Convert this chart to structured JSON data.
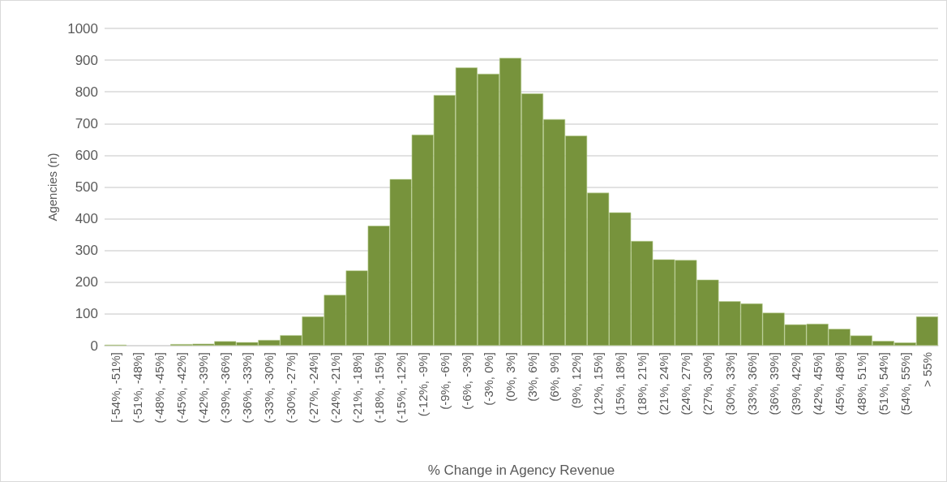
{
  "chart_data": {
    "type": "bar",
    "xlabel": "% Change in Agency Revenue",
    "ylabel": "Agencies (n)",
    "categories": [
      "[-54%, -51%]",
      "(-51%, -48%]",
      "(-48%, -45%]",
      "(-45%, -42%]",
      "(-42%, -39%]",
      "(-39%, -36%]",
      "(-36%, -33%]",
      "(-33%, -30%]",
      "(-30%, -27%]",
      "(-27%, -24%]",
      "(-24%, -21%]",
      "(-21%, -18%]",
      "(-18%, -15%]",
      "(-15%, -12%]",
      "(-12%, -9%]",
      "(-9%, -6%]",
      "(-6%, -3%]",
      "(-3%, 0%]",
      "(0%, 3%]",
      "(3%, 6%]",
      "(6%, 9%]",
      "(9%, 12%]",
      "(12%, 15%]",
      "(15%, 18%]",
      "(18%, 21%]",
      "(21%, 24%]",
      "(24%, 27%]",
      "(27%, 30%]",
      "(30%, 33%]",
      "(33%, 36%]",
      "(36%, 39%]",
      "(39%, 42%]",
      "(42%, 45%]",
      "(45%, 48%]",
      "(48%, 51%]",
      "(51%, 54%]",
      "(54%, 55%]",
      "> 55%"
    ],
    "values": [
      3,
      0,
      0,
      5,
      6,
      14,
      11,
      18,
      33,
      92,
      160,
      237,
      378,
      525,
      665,
      790,
      877,
      857,
      907,
      795,
      714,
      662,
      482,
      420,
      330,
      272,
      270,
      208,
      140,
      133,
      104,
      67,
      69,
      53,
      32,
      15,
      10,
      92
    ],
    "color": "#77933c",
    "ylim": [
      0,
      1000
    ],
    "yticks": [
      0,
      100,
      200,
      300,
      400,
      500,
      600,
      700,
      800,
      900,
      1000
    ],
    "grid": "y"
  }
}
